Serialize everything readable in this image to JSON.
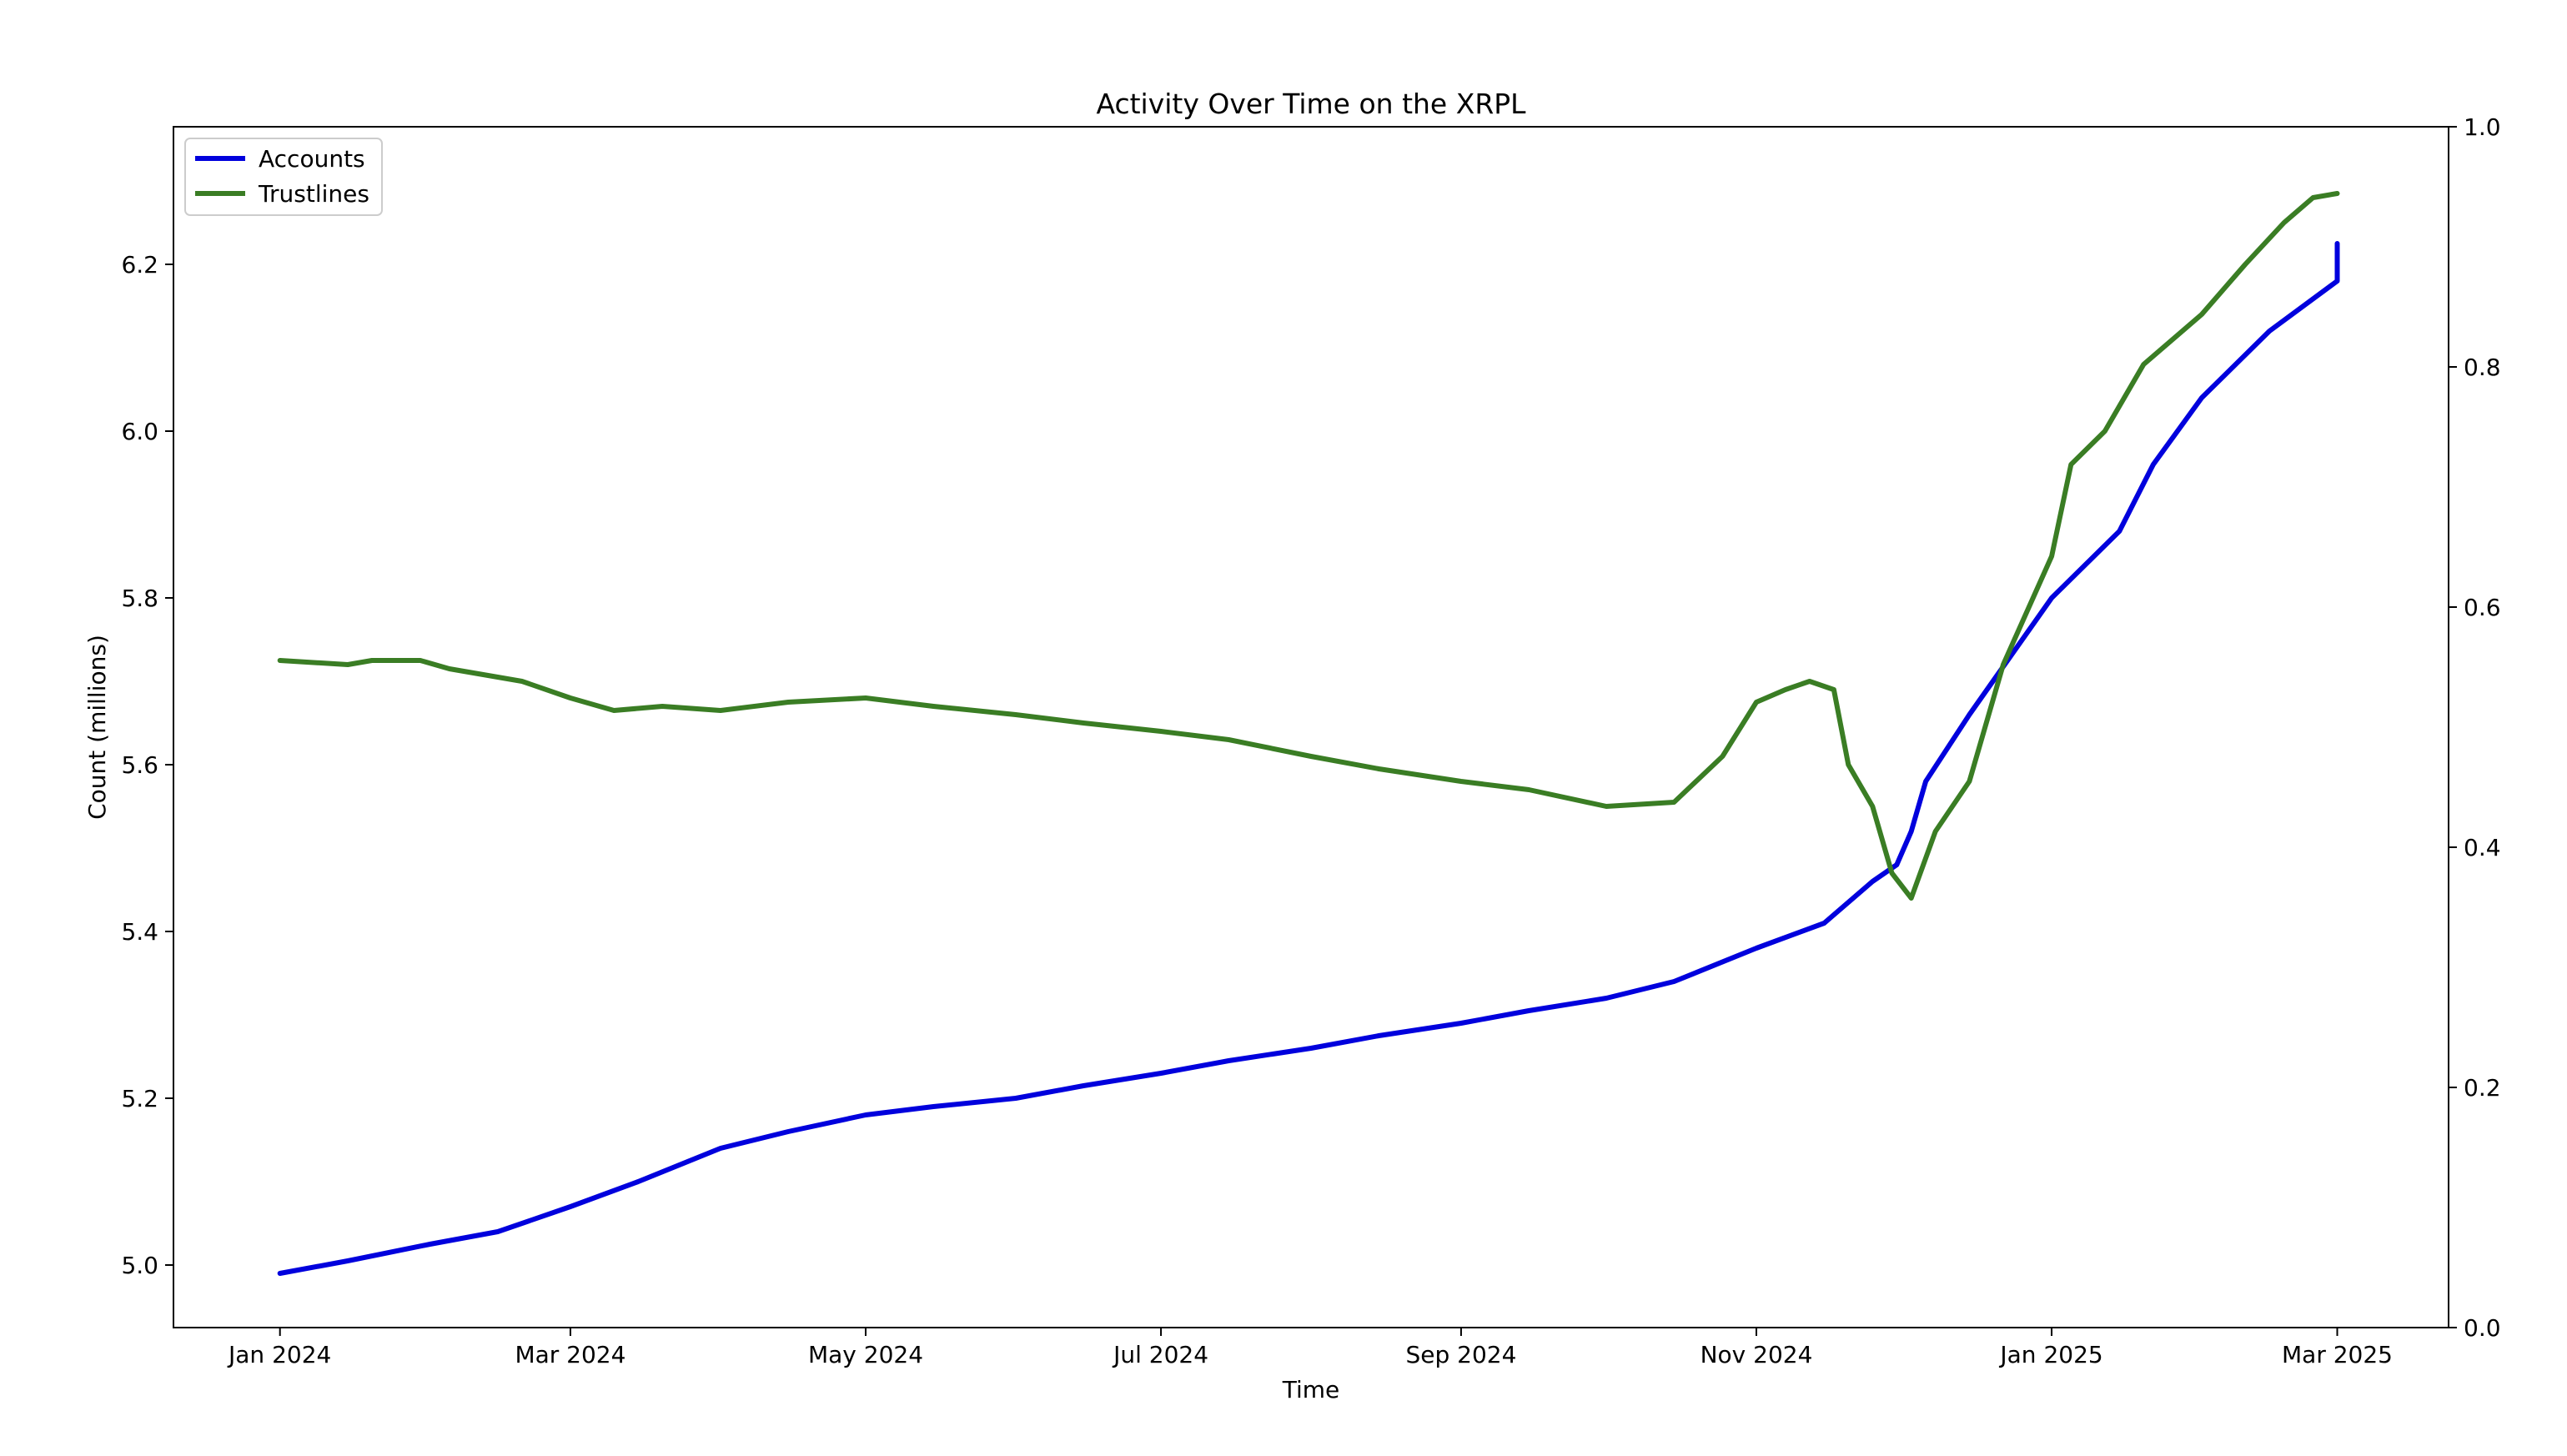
{
  "chart_data": {
    "type": "line",
    "title": "Activity Over Time on the XRPL",
    "xlabel": "Time",
    "ylabel": "Count (millions)",
    "ylim": [
      4.925,
      6.365
    ],
    "y2lim": [
      0.0,
      1.0
    ],
    "yticks": [
      5.0,
      5.2,
      5.4,
      5.6,
      5.8,
      6.0,
      6.2
    ],
    "yticks_right": [
      0.0,
      0.2,
      0.4,
      0.6,
      0.8,
      1.0
    ],
    "xlim": [
      "2023-12-10",
      "2025-03-24"
    ],
    "xticks": [
      {
        "date": "2024-01-01",
        "label": "Jan 2024"
      },
      {
        "date": "2024-03-01",
        "label": "Mar 2024"
      },
      {
        "date": "2024-05-01",
        "label": "May 2024"
      },
      {
        "date": "2024-07-01",
        "label": "Jul 2024"
      },
      {
        "date": "2024-09-01",
        "label": "Sep 2024"
      },
      {
        "date": "2024-11-01",
        "label": "Nov 2024"
      },
      {
        "date": "2025-01-01",
        "label": "Jan 2025"
      },
      {
        "date": "2025-03-01",
        "label": "Mar 2025"
      }
    ],
    "grid": false,
    "legend_position": "top-left",
    "series": [
      {
        "name": "Accounts",
        "color": "#0000dd",
        "points": [
          [
            "2024-01-01",
            4.99
          ],
          [
            "2024-01-15",
            5.005
          ],
          [
            "2024-02-01",
            5.025
          ],
          [
            "2024-02-15",
            5.04
          ],
          [
            "2024-03-01",
            5.07
          ],
          [
            "2024-03-15",
            5.1
          ],
          [
            "2024-04-01",
            5.14
          ],
          [
            "2024-04-15",
            5.16
          ],
          [
            "2024-05-01",
            5.18
          ],
          [
            "2024-05-15",
            5.19
          ],
          [
            "2024-06-01",
            5.2
          ],
          [
            "2024-06-15",
            5.215
          ],
          [
            "2024-07-01",
            5.23
          ],
          [
            "2024-07-15",
            5.245
          ],
          [
            "2024-08-01",
            5.26
          ],
          [
            "2024-08-15",
            5.275
          ],
          [
            "2024-09-01",
            5.29
          ],
          [
            "2024-09-15",
            5.305
          ],
          [
            "2024-10-01",
            5.32
          ],
          [
            "2024-10-15",
            5.34
          ],
          [
            "2024-11-01",
            5.38
          ],
          [
            "2024-11-15",
            5.41
          ],
          [
            "2024-11-25",
            5.46
          ],
          [
            "2024-11-30",
            5.48
          ],
          [
            "2024-12-03",
            5.52
          ],
          [
            "2024-12-06",
            5.58
          ],
          [
            "2024-12-15",
            5.66
          ],
          [
            "2025-01-01",
            5.8
          ],
          [
            "2025-01-15",
            5.88
          ],
          [
            "2025-01-22",
            5.96
          ],
          [
            "2025-02-01",
            6.04
          ],
          [
            "2025-02-15",
            6.12
          ],
          [
            "2025-03-01",
            6.18
          ],
          [
            "2025-03-01",
            6.225
          ]
        ]
      },
      {
        "name": "Trustlines",
        "color": "#3a7d24",
        "points": [
          [
            "2024-01-01",
            5.725
          ],
          [
            "2024-01-15",
            5.72
          ],
          [
            "2024-01-20",
            5.725
          ],
          [
            "2024-01-30",
            5.725
          ],
          [
            "2024-02-05",
            5.715
          ],
          [
            "2024-02-20",
            5.7
          ],
          [
            "2024-03-01",
            5.68
          ],
          [
            "2024-03-10",
            5.665
          ],
          [
            "2024-03-20",
            5.67
          ],
          [
            "2024-04-01",
            5.665
          ],
          [
            "2024-04-15",
            5.675
          ],
          [
            "2024-05-01",
            5.68
          ],
          [
            "2024-05-15",
            5.67
          ],
          [
            "2024-06-01",
            5.66
          ],
          [
            "2024-06-15",
            5.65
          ],
          [
            "2024-07-01",
            5.64
          ],
          [
            "2024-07-15",
            5.63
          ],
          [
            "2024-08-01",
            5.61
          ],
          [
            "2024-08-15",
            5.595
          ],
          [
            "2024-09-01",
            5.58
          ],
          [
            "2024-09-15",
            5.57
          ],
          [
            "2024-10-01",
            5.55
          ],
          [
            "2024-10-15",
            5.555
          ],
          [
            "2024-10-25",
            5.61
          ],
          [
            "2024-11-01",
            5.675
          ],
          [
            "2024-11-07",
            5.69
          ],
          [
            "2024-11-12",
            5.7
          ],
          [
            "2024-11-17",
            5.69
          ],
          [
            "2024-11-20",
            5.6
          ],
          [
            "2024-11-25",
            5.55
          ],
          [
            "2024-11-29",
            5.47
          ],
          [
            "2024-12-03",
            5.44
          ],
          [
            "2024-12-08",
            5.52
          ],
          [
            "2024-12-15",
            5.58
          ],
          [
            "2024-12-22",
            5.72
          ],
          [
            "2025-01-01",
            5.85
          ],
          [
            "2025-01-05",
            5.96
          ],
          [
            "2025-01-12",
            6.0
          ],
          [
            "2025-01-20",
            6.08
          ],
          [
            "2025-02-01",
            6.14
          ],
          [
            "2025-02-10",
            6.2
          ],
          [
            "2025-02-18",
            6.25
          ],
          [
            "2025-02-24",
            6.28
          ],
          [
            "2025-03-01",
            6.285
          ]
        ]
      }
    ]
  }
}
